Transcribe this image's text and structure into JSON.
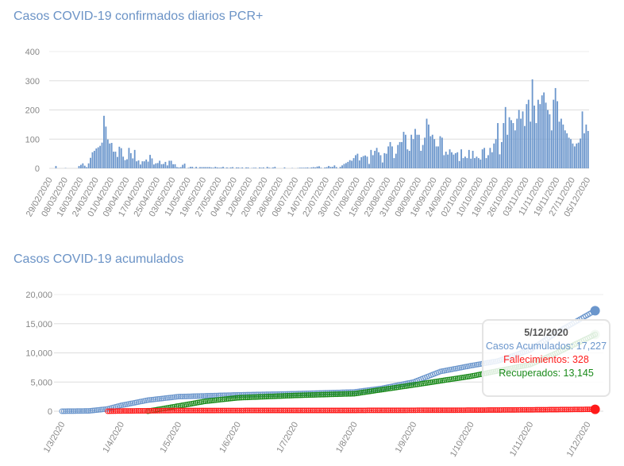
{
  "chart_data": [
    {
      "type": "bar",
      "title": "Casos COVID-19 confirmados diarios PCR+",
      "start_date": "29/02/2020",
      "end_date": "05/12/2020",
      "ylim": [
        0,
        400
      ],
      "yticks": [
        0,
        100,
        200,
        300,
        400
      ],
      "grid": true,
      "color": "#6b96cc",
      "xtick_labels": [
        "29/02/2020",
        "08/03/2020",
        "16/03/2020",
        "24/03/2020",
        "01/04/2020",
        "09/04/2020",
        "17/04/2020",
        "25/04/2020",
        "03/05/2020",
        "11/05/2020",
        "19/05/2020",
        "27/05/2020",
        "04/06/2020",
        "12/06/2020",
        "20/06/2020",
        "28/06/2020",
        "06/07/2020",
        "14/07/2020",
        "22/07/2020",
        "30/07/2020",
        "07/08/2020",
        "15/08/2020",
        "23/08/2020",
        "31/08/2020",
        "08/09/2020",
        "16/09/2020",
        "24/09/2020",
        "02/10/2020",
        "10/10/2020",
        "18/10/2020",
        "26/10/2020",
        "03/11/2020",
        "11/11/2020",
        "19/11/2020",
        "27/11/2020",
        "05/12/2020"
      ],
      "values": [
        0,
        0,
        0,
        8,
        0,
        0,
        0,
        0,
        1,
        0,
        0,
        0,
        0,
        0,
        0,
        8,
        12,
        17,
        9,
        4,
        17,
        36,
        55,
        60,
        68,
        72,
        77,
        88,
        180,
        143,
        99,
        85,
        87,
        57,
        57,
        39,
        74,
        69,
        40,
        28,
        31,
        70,
        52,
        34,
        63,
        24,
        27,
        13,
        24,
        24,
        30,
        23,
        46,
        34,
        13,
        17,
        18,
        26,
        14,
        15,
        22,
        10,
        26,
        26,
        14,
        14,
        4,
        3,
        4,
        12,
        16,
        0,
        2,
        5,
        5,
        1,
        5,
        1,
        4,
        4,
        4,
        4,
        4,
        4,
        3,
        2,
        5,
        3,
        2,
        3,
        5,
        1,
        3,
        1,
        3,
        4,
        0,
        3,
        3,
        1,
        3,
        0,
        3,
        3,
        0,
        1,
        2,
        2,
        0,
        3,
        2,
        3,
        0,
        5,
        2,
        1,
        3,
        5,
        0,
        0,
        0,
        0,
        3,
        0,
        0,
        0,
        1,
        0,
        0,
        1,
        2,
        2,
        2,
        2,
        3,
        1,
        3,
        4,
        3,
        6,
        7,
        2,
        0,
        3,
        4,
        8,
        5,
        5,
        10,
        4,
        0,
        5,
        10,
        15,
        18,
        22,
        28,
        26,
        35,
        45,
        50,
        27,
        38,
        42,
        44,
        40,
        15,
        63,
        45,
        60,
        70,
        55,
        45,
        20,
        52,
        50,
        75,
        90,
        75,
        35,
        50,
        80,
        90,
        90,
        125,
        115,
        65,
        60,
        115,
        100,
        135,
        115,
        115,
        60,
        80,
        105,
        170,
        150,
        110,
        115,
        100,
        75,
        75,
        110,
        105,
        45,
        57,
        47,
        65,
        55,
        47,
        52,
        55,
        25,
        65,
        35,
        40,
        35,
        63,
        33,
        60,
        35,
        40,
        35,
        30,
        65,
        70,
        35,
        45,
        70,
        55,
        85,
        100,
        155,
        48,
        90,
        155,
        210,
        115,
        175,
        165,
        155,
        130,
        170,
        200,
        170,
        195,
        145,
        220,
        235,
        160,
        305,
        215,
        155,
        235,
        220,
        250,
        260,
        225,
        200,
        185,
        130,
        235,
        275,
        230,
        160,
        170,
        150,
        130,
        120,
        105,
        100,
        85,
        75,
        85,
        88,
        102,
        195,
        120,
        150,
        128
      ]
    },
    {
      "type": "line",
      "title": "Casos COVID-19 acumulados",
      "ylim": [
        0,
        20000
      ],
      "yticks": [
        "0",
        "5,000",
        "10,000",
        "15,000",
        "20,000"
      ],
      "grid": true,
      "xtick_labels": [
        "1/3/2020",
        "1/4/2020",
        "1/5/2020",
        "1/6/2020",
        "1/7/2020",
        "1/8/2020",
        "1/9/2020",
        "1/10/2020",
        "1/11/2020",
        "1/12/2020"
      ],
      "series": [
        {
          "name": "Casos Acumulados",
          "color": "#6b96cc",
          "points": [
            [
              "2020-03-01",
              0
            ],
            [
              "2020-03-15",
              50
            ],
            [
              "2020-03-25",
              400
            ],
            [
              "2020-04-01",
              1000
            ],
            [
              "2020-04-15",
              1900
            ],
            [
              "2020-05-01",
              2500
            ],
            [
              "2020-06-01",
              2800
            ],
            [
              "2020-07-01",
              3000
            ],
            [
              "2020-08-01",
              3300
            ],
            [
              "2020-08-15",
              3900
            ],
            [
              "2020-09-01",
              5000
            ],
            [
              "2020-09-15",
              6800
            ],
            [
              "2020-10-01",
              7800
            ],
            [
              "2020-10-15",
              8600
            ],
            [
              "2020-11-01",
              10500
            ],
            [
              "2020-11-15",
              13500
            ],
            [
              "2020-12-01",
              16500
            ],
            [
              "2020-12-05",
              17227
            ]
          ]
        },
        {
          "name": "Recuperados",
          "color": "#1a8a1a",
          "points": [
            [
              "2020-04-15",
              0
            ],
            [
              "2020-05-01",
              900
            ],
            [
              "2020-05-15",
              1700
            ],
            [
              "2020-06-01",
              2300
            ],
            [
              "2020-07-01",
              2700
            ],
            [
              "2020-08-01",
              3000
            ],
            [
              "2020-09-01",
              4500
            ],
            [
              "2020-10-01",
              6000
            ],
            [
              "2020-11-01",
              8000
            ],
            [
              "2020-11-15",
              10000
            ],
            [
              "2020-12-01",
              12500
            ],
            [
              "2020-12-05",
              13145
            ]
          ]
        },
        {
          "name": "Fallecimientos",
          "color": "#ff1a1a",
          "points": [
            [
              "2020-03-25",
              0
            ],
            [
              "2020-04-01",
              40
            ],
            [
              "2020-05-01",
              120
            ],
            [
              "2020-08-01",
              140
            ],
            [
              "2020-10-01",
              180
            ],
            [
              "2020-11-01",
              240
            ],
            [
              "2020-12-05",
              328
            ]
          ]
        }
      ],
      "tooltip": {
        "date": "5/12/2020",
        "lines": [
          "Casos Acumulados: 17,227",
          "Fallecimientos: 328",
          "Recuperados: 13,145"
        ]
      }
    }
  ]
}
